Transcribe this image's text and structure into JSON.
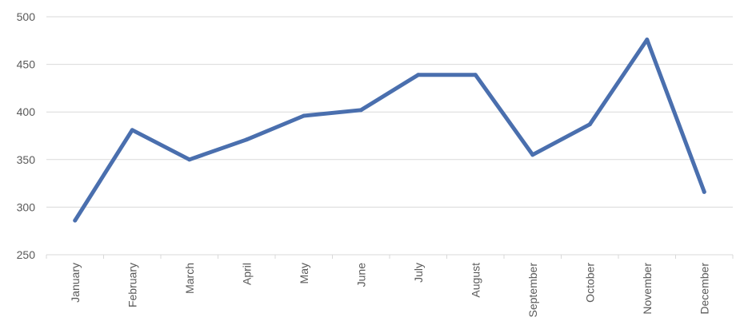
{
  "chart_data": {
    "type": "line",
    "title": "",
    "xlabel": "",
    "ylabel": "",
    "categories": [
      "January",
      "February",
      "March",
      "April",
      "May",
      "June",
      "July",
      "August",
      "September",
      "October",
      "November",
      "December"
    ],
    "series": [
      {
        "values": [
          286,
          381,
          350,
          371,
          396,
          402,
          439,
          439,
          355,
          387,
          476,
          316
        ],
        "color": "#4a6fae"
      }
    ],
    "ylim": [
      250,
      500
    ],
    "yticks": [
      250,
      300,
      350,
      400,
      450,
      500
    ],
    "grid": true,
    "legend": "none",
    "gridline_color": "#d9d9d9",
    "label_color": "#595959"
  }
}
